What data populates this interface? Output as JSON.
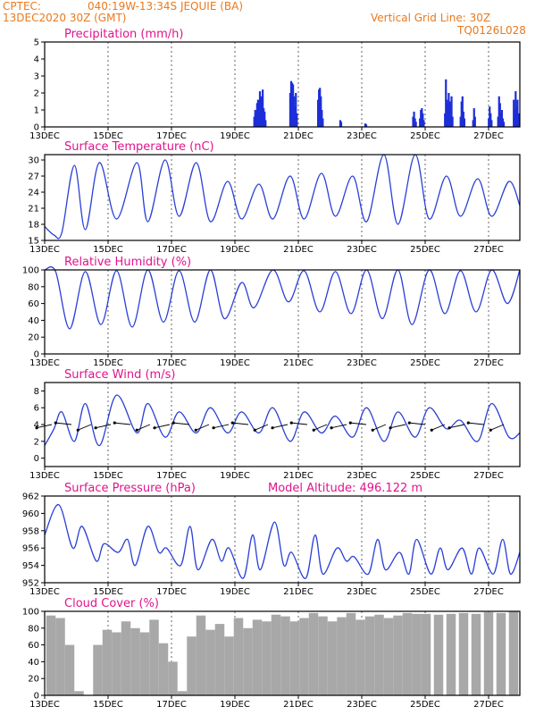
{
  "header": {
    "source": "CPTEC:",
    "location": "040:19W-13:34S  JEQUIE (BA)",
    "date": "13DEC2020 30Z (GMT)",
    "vertical_grid": "Vertical Grid Line: 30Z",
    "code": "TQ0126L028"
  },
  "colors": {
    "header": "#e87a1e",
    "title": "#e0148c",
    "series": "#2a3fd6",
    "bars": "#1d2ed8",
    "cloud": "#a8a8a8"
  },
  "chart_data": [
    {
      "type": "bar",
      "title": "Precipitation  (mm/h)",
      "xticks": [
        "13DEC",
        "15DEC",
        "17DEC",
        "19DEC",
        "21DEC",
        "23DEC",
        "25DEC",
        "27DEC"
      ],
      "ylim": [
        0,
        5
      ],
      "yticks": [
        0,
        1,
        2,
        3,
        4,
        5
      ],
      "xrange": [
        0,
        15.2
      ],
      "x": [
        6.7,
        6.73,
        6.76,
        6.79,
        6.82,
        6.85,
        6.88,
        6.91,
        6.94,
        6.97,
        7.0,
        7.03,
        7.06,
        7.85,
        7.88,
        7.91,
        7.94,
        7.97,
        8.0,
        8.03,
        8.06,
        8.74,
        8.77,
        8.8,
        8.83,
        8.86,
        8.89,
        9.45,
        9.48,
        10.25,
        10.28,
        11.78,
        11.81,
        11.84,
        11.87,
        12.0,
        12.03,
        12.06,
        12.09,
        12.12,
        12.8,
        12.83,
        12.86,
        12.89,
        12.92,
        12.95,
        12.98,
        13.01,
        13.04,
        13.3,
        13.33,
        13.36,
        13.39,
        13.42,
        13.7,
        13.73,
        13.76,
        14.2,
        14.23,
        14.26,
        14.29,
        14.5,
        14.53,
        14.56,
        14.59,
        14.62,
        14.65,
        14.68,
        15.0,
        15.03,
        15.06,
        15.09,
        15.12,
        15.15
      ],
      "values": [
        0.6,
        1.0,
        0.8,
        1.4,
        1.6,
        1.2,
        2.1,
        1.5,
        1.8,
        2.2,
        1.1,
        0.9,
        0.4,
        2.0,
        2.7,
        2.6,
        2.5,
        1.8,
        1.2,
        2.0,
        0.8,
        1.6,
        2.2,
        2.3,
        1.8,
        1.0,
        0.5,
        0.4,
        0.3,
        0.2,
        0.15,
        0.6,
        0.9,
        0.5,
        0.3,
        0.5,
        1.0,
        1.1,
        0.8,
        0.4,
        0.8,
        2.8,
        1.6,
        1.4,
        2.0,
        1.5,
        1.0,
        1.8,
        0.6,
        0.6,
        1.5,
        1.8,
        0.9,
        0.5,
        0.4,
        1.1,
        0.6,
        0.5,
        1.2,
        0.8,
        0.4,
        0.6,
        1.8,
        1.4,
        0.8,
        1.0,
        0.5,
        0.3,
        1.6,
        1.0,
        2.1,
        1.2,
        1.6,
        0.8
      ]
    },
    {
      "type": "line",
      "title": "Surface Temperature (nC)",
      "xticks": [
        "13DEC",
        "15DEC",
        "17DEC",
        "19DEC",
        "21DEC",
        "23DEC",
        "25DEC",
        "27DEC"
      ],
      "ylim": [
        15,
        31
      ],
      "yticks": [
        15,
        18,
        21,
        24,
        27,
        30
      ],
      "xrange": [
        0,
        15.2
      ],
      "x": [
        0.0,
        0.3,
        0.55,
        0.95,
        1.3,
        1.75,
        2.3,
        2.95,
        3.3,
        3.85,
        4.3,
        4.85,
        5.3,
        5.85,
        6.3,
        6.85,
        7.3,
        7.85,
        8.3,
        8.85,
        9.3,
        9.85,
        10.3,
        10.85,
        11.3,
        11.85,
        12.3,
        12.85,
        13.3,
        13.85,
        14.3,
        14.85,
        15.2
      ],
      "values": [
        17.6,
        16.0,
        16.5,
        29.0,
        17.0,
        29.5,
        19.0,
        29.5,
        18.5,
        30.0,
        19.5,
        29.5,
        18.5,
        26.0,
        19.0,
        25.5,
        19.0,
        27.0,
        19.0,
        27.5,
        19.5,
        27.0,
        18.5,
        31.0,
        18.0,
        31.0,
        19.0,
        27.0,
        19.5,
        26.5,
        19.5,
        26.0,
        21.5
      ]
    },
    {
      "type": "line",
      "title": "Relative Humidity (%)",
      "xticks": [
        "13DEC",
        "15DEC",
        "17DEC",
        "19DEC",
        "21DEC",
        "23DEC",
        "25DEC",
        "27DEC"
      ],
      "ylim": [
        0,
        100
      ],
      "yticks": [
        0,
        20,
        40,
        60,
        80,
        100
      ],
      "xrange": [
        0,
        15.2
      ],
      "x": [
        0.0,
        0.35,
        0.8,
        1.3,
        1.8,
        2.3,
        2.8,
        3.3,
        3.8,
        4.3,
        4.8,
        5.3,
        5.75,
        6.3,
        6.7,
        7.3,
        7.8,
        8.3,
        8.8,
        9.3,
        9.8,
        10.3,
        10.8,
        11.3,
        11.75,
        12.3,
        12.8,
        13.3,
        13.8,
        14.3,
        14.8,
        15.2
      ],
      "values": [
        100,
        98,
        30,
        98,
        35,
        99,
        32,
        100,
        38,
        99,
        38,
        100,
        42,
        85,
        55,
        100,
        62,
        99,
        50,
        98,
        48,
        100,
        42,
        100,
        35,
        100,
        48,
        99,
        50,
        100,
        60,
        100
      ]
    },
    {
      "type": "line",
      "title": "Surface Wind (m/s)",
      "xticks": [
        "13DEC",
        "15DEC",
        "17DEC",
        "19DEC",
        "21DEC",
        "23DEC",
        "25DEC",
        "27DEC"
      ],
      "ylim": [
        -1,
        9
      ],
      "yticks": [
        0,
        2,
        4,
        6,
        8
      ],
      "xrange": [
        0,
        15.2
      ],
      "x": [
        0.0,
        0.3,
        0.55,
        0.95,
        1.3,
        1.75,
        2.3,
        2.95,
        3.3,
        3.85,
        4.3,
        4.85,
        5.3,
        5.85,
        6.3,
        6.85,
        7.3,
        7.85,
        8.3,
        8.85,
        9.3,
        9.85,
        10.3,
        10.85,
        11.3,
        11.85,
        12.3,
        12.85,
        13.3,
        13.85,
        14.3,
        14.85,
        15.2
      ],
      "values": [
        1.5,
        3.5,
        5.5,
        2.0,
        6.5,
        1.5,
        7.5,
        3.0,
        6.5,
        2.5,
        5.5,
        3.0,
        6.0,
        3.0,
        5.5,
        3.0,
        6.0,
        2.0,
        5.5,
        3.0,
        5.0,
        2.5,
        6.0,
        2.0,
        5.5,
        2.5,
        6.0,
        3.5,
        4.5,
        2.0,
        6.5,
        2.5,
        3.0
      ]
    },
    {
      "type": "line",
      "title": "Surface Pressure (hPa)",
      "annotation": "Model Altitude: 496.122  m",
      "xticks": [
        "13DEC",
        "15DEC",
        "17DEC",
        "19DEC",
        "21DEC",
        "23DEC",
        "25DEC",
        "27DEC"
      ],
      "ylim": [
        952,
        962
      ],
      "yticks": [
        952,
        954,
        956,
        958,
        960,
        962
      ],
      "xrange": [
        0,
        15.2
      ],
      "x": [
        0.0,
        0.45,
        0.9,
        1.2,
        1.65,
        1.9,
        2.35,
        2.65,
        2.9,
        3.3,
        3.65,
        3.9,
        4.35,
        4.65,
        4.9,
        5.35,
        5.65,
        5.9,
        6.35,
        6.65,
        6.9,
        7.35,
        7.65,
        7.9,
        8.35,
        8.65,
        8.9,
        9.35,
        9.65,
        9.9,
        10.35,
        10.65,
        10.9,
        11.35,
        11.65,
        11.9,
        12.35,
        12.65,
        12.9,
        13.35,
        13.65,
        13.9,
        14.35,
        14.65,
        14.9,
        15.2
      ],
      "values": [
        957.5,
        961.0,
        956.0,
        958.5,
        954.5,
        956.5,
        955.5,
        957.0,
        954.0,
        958.5,
        955.5,
        956.0,
        954.0,
        958.5,
        953.5,
        957.0,
        954.5,
        956.0,
        952.5,
        957.5,
        953.5,
        959.0,
        954.0,
        955.5,
        952.5,
        957.5,
        953.0,
        956.0,
        954.5,
        955.0,
        953.0,
        957.0,
        953.5,
        955.5,
        953.0,
        957.0,
        953.0,
        956.0,
        953.5,
        956.0,
        953.0,
        956.0,
        953.0,
        957.0,
        953.0,
        955.5
      ]
    },
    {
      "type": "bar",
      "title": "Cloud Cover (%)",
      "xticks": [
        "13DEC",
        "15DEC",
        "17DEC",
        "19DEC",
        "21DEC",
        "23DEC",
        "25DEC",
        "27DEC"
      ],
      "ylim": [
        0,
        100
      ],
      "yticks": [
        0,
        20,
        40,
        60,
        80,
        100
      ],
      "xrange": [
        0,
        15.2
      ],
      "x": [
        0.2,
        0.5,
        0.8,
        1.1,
        1.4,
        1.7,
        2.0,
        2.3,
        2.6,
        2.9,
        3.2,
        3.5,
        3.8,
        4.1,
        4.4,
        4.7,
        5.0,
        5.3,
        5.6,
        5.9,
        6.2,
        6.5,
        6.8,
        7.1,
        7.4,
        7.7,
        8.0,
        8.3,
        8.6,
        8.9,
        9.2,
        9.5,
        9.8,
        10.1,
        10.4,
        10.7,
        11.0,
        11.3,
        11.6,
        11.9,
        12.2,
        12.6,
        13.0,
        13.4,
        13.8,
        14.2,
        14.6,
        15.0
      ],
      "values": [
        95,
        92,
        60,
        5,
        0,
        60,
        78,
        75,
        88,
        80,
        75,
        90,
        62,
        40,
        5,
        70,
        95,
        78,
        85,
        70,
        92,
        80,
        90,
        88,
        96,
        94,
        88,
        92,
        98,
        94,
        88,
        93,
        98,
        90,
        94,
        96,
        92,
        95,
        98,
        97,
        97,
        96,
        97,
        98,
        97,
        99,
        98,
        100
      ]
    }
  ]
}
